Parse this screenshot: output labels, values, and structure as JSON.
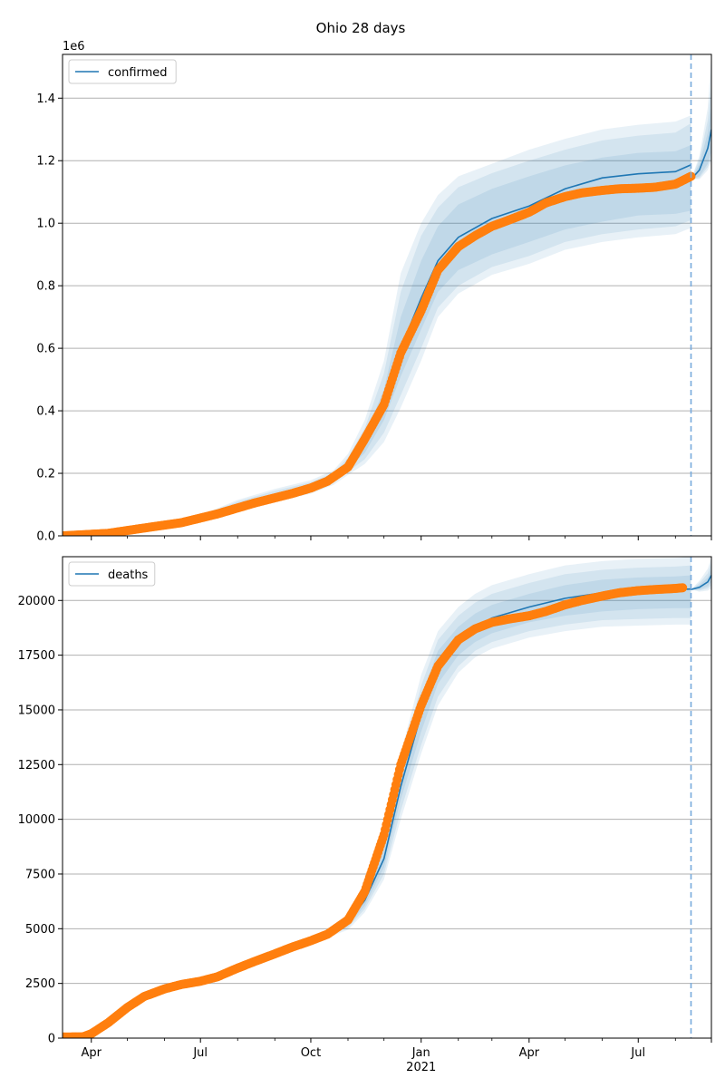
{
  "figure": {
    "title": "Ohio 28 days"
  },
  "colors": {
    "fit_line": "#1f77b4",
    "observed": "#ff7f0e",
    "band": "#1f77b4",
    "forecast_marker": "#77aadd",
    "grid": "#b0b0b0"
  },
  "chart_data": [
    {
      "type": "line",
      "title": "",
      "xlabel": "",
      "ylabel": "",
      "scale_label": "1e6",
      "x_range": [
        "2020-03-08",
        "2021-08-31"
      ],
      "ylim": [
        0,
        1540000
      ],
      "yticks": [
        0,
        200000,
        400000,
        600000,
        800000,
        1000000,
        1200000,
        1400000
      ],
      "ytick_labels": [
        "0.0",
        "0.2",
        "0.4",
        "0.6",
        "0.8",
        "1.0",
        "1.2",
        "1.4"
      ],
      "xticks": [
        "2020-04-01",
        "2020-07-01",
        "2020-10-01",
        "2021-01-01",
        "2021-04-01",
        "2021-07-01"
      ],
      "xtick_labels": [
        "Apr",
        "Jul",
        "Oct",
        "Jan\n2021",
        "Apr",
        "Jul"
      ],
      "grid": "horizontal",
      "legend": {
        "position": "top-left",
        "entries": [
          "confirmed"
        ]
      },
      "forecast_start": "2021-08-14",
      "series": [
        {
          "name": "confirmed",
          "kind": "model",
          "x": [
            "2020-03-08",
            "2020-04-15",
            "2020-06-01",
            "2020-07-01",
            "2020-08-01",
            "2020-09-01",
            "2020-10-01",
            "2020-10-20",
            "2020-11-01",
            "2020-11-15",
            "2020-12-01",
            "2020-12-15",
            "2021-01-01",
            "2021-01-15",
            "2021-02-01",
            "2021-03-01",
            "2021-04-01",
            "2021-05-01",
            "2021-06-01",
            "2021-07-01",
            "2021-08-01",
            "2021-08-14"
          ],
          "values": [
            0,
            10000,
            38000,
            55000,
            98000,
            128000,
            155000,
            185000,
            225000,
            290000,
            420000,
            600000,
            760000,
            880000,
            955000,
            1015000,
            1055000,
            1110000,
            1145000,
            1158000,
            1165000,
            1187000
          ],
          "bands": [
            {
              "lower": [
                0,
                9000,
                35000,
                51000,
                93000,
                121000,
                148000,
                178000,
                215000,
                265000,
                370000,
                510000,
                660000,
                780000,
                850000,
                900000,
                940000,
                980000,
                1005000,
                1025000,
                1030000,
                1040000
              ],
              "upper": [
                0,
                11000,
                41000,
                59000,
                104000,
                136000,
                164000,
                194000,
                237000,
                318000,
                470000,
                700000,
                880000,
                990000,
                1060000,
                1110000,
                1150000,
                1185000,
                1210000,
                1225000,
                1230000,
                1250000
              ]
            },
            {
              "lower": [
                0,
                8000,
                32000,
                47000,
                88000,
                114000,
                141000,
                170000,
                205000,
                245000,
                330000,
                450000,
                600000,
                730000,
                800000,
                860000,
                895000,
                940000,
                965000,
                980000,
                990000,
                1010000
              ],
              "upper": [
                0,
                12000,
                44000,
                63000,
                110000,
                144000,
                172000,
                202000,
                250000,
                345000,
                520000,
                780000,
                960000,
                1050000,
                1115000,
                1160000,
                1200000,
                1235000,
                1265000,
                1280000,
                1290000,
                1320000
              ]
            },
            {
              "lower": [
                0,
                7000,
                30000,
                44000,
                84000,
                108000,
                135000,
                163000,
                195000,
                230000,
                300000,
                410000,
                560000,
                700000,
                775000,
                835000,
                870000,
                915000,
                940000,
                955000,
                965000,
                985000
              ],
              "upper": [
                0,
                13000,
                46000,
                66000,
                115000,
                150000,
                178000,
                210000,
                262000,
                370000,
                560000,
                840000,
                1000000,
                1090000,
                1150000,
                1190000,
                1235000,
                1270000,
                1300000,
                1315000,
                1325000,
                1345000
              ]
            }
          ]
        },
        {
          "name": "",
          "kind": "forecast",
          "x": [
            "2021-08-14",
            "2021-08-21",
            "2021-08-28",
            "2021-08-31"
          ],
          "values": [
            1140000,
            1170000,
            1240000,
            1300000
          ],
          "bands": [
            {
              "lower": [
                1140000,
                1150000,
                1190000,
                1230000
              ],
              "upper": [
                1140000,
                1190000,
                1290000,
                1380000
              ]
            },
            {
              "lower": [
                1140000,
                1145000,
                1180000,
                1210000
              ],
              "upper": [
                1140000,
                1205000,
                1330000,
                1450000
              ]
            },
            {
              "lower": [
                1140000,
                1140000,
                1170000,
                1200000
              ],
              "upper": [
                1140000,
                1215000,
                1370000,
                1540000
              ]
            }
          ]
        },
        {
          "name": "",
          "kind": "observed",
          "x": [
            "2020-03-08",
            "2020-04-15",
            "2020-05-15",
            "2020-06-15",
            "2020-07-15",
            "2020-08-15",
            "2020-09-15",
            "2020-10-01",
            "2020-10-15",
            "2020-11-01",
            "2020-11-15",
            "2020-12-01",
            "2020-12-15",
            "2021-01-01",
            "2021-01-15",
            "2021-02-01",
            "2021-02-15",
            "2021-03-01",
            "2021-03-15",
            "2021-04-01",
            "2021-04-15",
            "2021-05-01",
            "2021-05-15",
            "2021-06-01",
            "2021-06-15",
            "2021-07-01",
            "2021-07-15",
            "2021-08-01",
            "2021-08-14"
          ],
          "values": [
            0,
            8000,
            25000,
            42000,
            70000,
            105000,
            135000,
            153000,
            175000,
            220000,
            310000,
            420000,
            585000,
            720000,
            850000,
            925000,
            960000,
            990000,
            1010000,
            1035000,
            1065000,
            1085000,
            1097000,
            1105000,
            1110000,
            1112000,
            1115000,
            1125000,
            1150000
          ]
        }
      ]
    },
    {
      "type": "line",
      "title": "",
      "xlabel": "",
      "ylabel": "",
      "x_range": [
        "2020-03-08",
        "2021-08-31"
      ],
      "ylim": [
        0,
        22000
      ],
      "yticks": [
        0,
        2500,
        5000,
        7500,
        10000,
        12500,
        15000,
        17500,
        20000
      ],
      "ytick_labels": [
        "0",
        "2500",
        "5000",
        "7500",
        "10000",
        "12500",
        "15000",
        "17500",
        "20000"
      ],
      "xticks": [
        "2020-04-01",
        "2020-07-01",
        "2020-10-01",
        "2021-01-01",
        "2021-04-01",
        "2021-07-01"
      ],
      "xtick_labels": [
        "Apr",
        "Jul",
        "Oct",
        "Jan\n2021",
        "Apr",
        "Jul"
      ],
      "grid": "horizontal",
      "legend": {
        "position": "top-left",
        "entries": [
          "deaths"
        ]
      },
      "forecast_start": "2021-08-14",
      "series": [
        {
          "name": "deaths",
          "kind": "model",
          "x": [
            "2020-10-15",
            "2020-11-01",
            "2020-11-15",
            "2020-12-01",
            "2020-12-15",
            "2021-01-01",
            "2021-01-15",
            "2021-02-01",
            "2021-02-15",
            "2021-03-01",
            "2021-04-01",
            "2021-05-01",
            "2021-06-01",
            "2021-07-01",
            "2021-08-01",
            "2021-08-14"
          ],
          "values": [
            4800,
            5300,
            6300,
            8200,
            11500,
            14800,
            17000,
            18200,
            18800,
            19200,
            19700,
            20100,
            20350,
            20450,
            20500,
            20520
          ],
          "bands": [
            {
              "lower": [
                4700,
                5150,
                6050,
                7800,
                10900,
                14000,
                16200,
                17500,
                18100,
                18500,
                19000,
                19300,
                19500,
                19600,
                19650,
                19650
              ],
              "upper": [
                4900,
                5450,
                6550,
                8600,
                12100,
                15600,
                17700,
                18800,
                19400,
                19800,
                20300,
                20700,
                20950,
                21050,
                21100,
                21150
              ]
            },
            {
              "lower": [
                4650,
                5050,
                5900,
                7500,
                10400,
                13400,
                15600,
                17000,
                17700,
                18100,
                18600,
                18900,
                19100,
                19150,
                19200,
                19200
              ],
              "upper": [
                4950,
                5550,
                6700,
                8900,
                12600,
                16100,
                18200,
                19300,
                19900,
                20300,
                20800,
                21200,
                21400,
                21500,
                21550,
                21600
              ]
            },
            {
              "lower": [
                4600,
                4950,
                5750,
                7250,
                10000,
                13000,
                15200,
                16700,
                17400,
                17800,
                18300,
                18600,
                18800,
                18850,
                18900,
                18900
              ],
              "upper": [
                5000,
                5650,
                6850,
                9200,
                13000,
                16600,
                18600,
                19700,
                20300,
                20700,
                21200,
                21600,
                21800,
                21900,
                21950,
                22000
              ]
            }
          ]
        },
        {
          "name": "",
          "kind": "forecast",
          "x": [
            "2021-08-14",
            "2021-08-21",
            "2021-08-28",
            "2021-08-31"
          ],
          "values": [
            20500,
            20600,
            20850,
            21150
          ],
          "bands": [
            {
              "lower": [
                20500,
                20500,
                20650,
                20850
              ],
              "upper": [
                20500,
                20700,
                21050,
                21450
              ]
            },
            {
              "lower": [
                20500,
                20450,
                20550,
                20700
              ],
              "upper": [
                20500,
                20800,
                21250,
                21750
              ]
            },
            {
              "lower": [
                20500,
                20400,
                20450,
                20550
              ],
              "upper": [
                20500,
                20900,
                21450,
                22000
              ]
            }
          ]
        },
        {
          "name": "",
          "kind": "observed",
          "x": [
            "2020-03-08",
            "2020-03-25",
            "2020-04-01",
            "2020-04-15",
            "2020-05-01",
            "2020-05-15",
            "2020-06-01",
            "2020-06-15",
            "2020-07-01",
            "2020-07-15",
            "2020-08-01",
            "2020-08-15",
            "2020-09-01",
            "2020-09-15",
            "2020-10-01",
            "2020-10-15",
            "2020-11-01",
            "2020-11-15",
            "2020-12-01",
            "2020-12-15",
            "2021-01-01",
            "2021-01-15",
            "2021-02-01",
            "2021-02-15",
            "2021-03-01",
            "2021-03-15",
            "2021-04-01",
            "2021-04-15",
            "2021-05-01",
            "2021-05-15",
            "2021-06-01",
            "2021-06-15",
            "2021-07-01",
            "2021-07-15",
            "2021-08-01",
            "2021-08-07"
          ],
          "values": [
            50,
            60,
            200,
            700,
            1400,
            1900,
            2250,
            2450,
            2600,
            2800,
            3200,
            3500,
            3850,
            4150,
            4450,
            4750,
            5400,
            6700,
            9300,
            12500,
            15200,
            17000,
            18200,
            18700,
            19000,
            19150,
            19300,
            19500,
            19800,
            20000,
            20200,
            20350,
            20450,
            20500,
            20550,
            20580
          ]
        }
      ]
    }
  ]
}
